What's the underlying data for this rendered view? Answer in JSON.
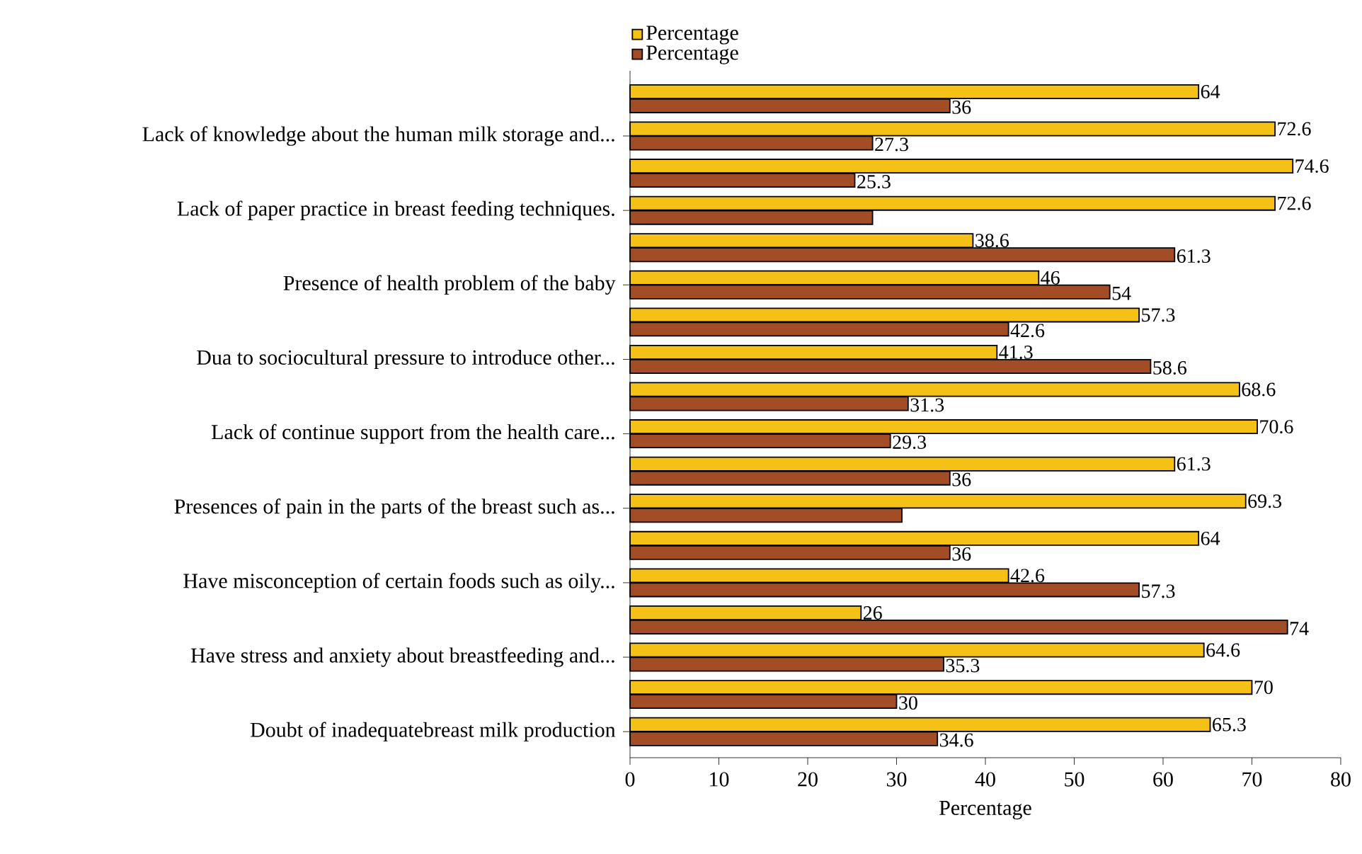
{
  "chart_data": {
    "type": "bar",
    "orientation": "horizontal",
    "xlabel": "Percentage",
    "categories": [
      null,
      "Lack of knowledge about the human milk storage and...",
      null,
      "Lack of paper practice in breast feeding techniques.",
      null,
      "Presence of health problem of the baby",
      null,
      "Dua to sociocultural pressure to introduce other...",
      null,
      "Lack of continue support from the health care...",
      null,
      "Presences of pain in the parts of the breast such as...",
      null,
      "Have misconception of certain foods such as oily...",
      null,
      "Have stress and anxiety about breastfeeding and...",
      null,
      "Doubt of inadequatebreast milk production"
    ],
    "series": [
      {
        "name": "Percentage",
        "color": "#f5c116",
        "values": [
          64,
          72.6,
          74.6,
          72.6,
          38.6,
          46,
          57.3,
          41.3,
          68.6,
          70.6,
          61.3,
          69.3,
          64,
          42.6,
          26,
          64.6,
          70,
          65.3
        ],
        "value_labels": [
          "64",
          "72.6",
          "74.6",
          "72.6",
          "38.6",
          "46",
          "57.3",
          "41.3",
          "68.6",
          "70.6",
          "61.3",
          "69.3",
          "64",
          "42.6",
          "26",
          "64.6",
          "70",
          "65.3"
        ]
      },
      {
        "name": "Percentage",
        "color": "#a34d26",
        "values": [
          36,
          27.3,
          25.3,
          27.3,
          61.3,
          54,
          42.6,
          58.6,
          31.3,
          29.3,
          36,
          30.6,
          36,
          57.3,
          74,
          35.3,
          30,
          34.6
        ],
        "value_labels": [
          "36",
          "27.3",
          "25.3",
          null,
          "61.3",
          "54",
          "42.6",
          "58.6",
          "31.3",
          "29.3",
          "36",
          null,
          "36",
          "57.3",
          "74",
          "35.3",
          "30",
          "34.6"
        ]
      }
    ],
    "xlim": [
      0,
      80
    ],
    "xticks": [
      0,
      10,
      20,
      30,
      40,
      50,
      60,
      70,
      80
    ],
    "legend": "top left"
  }
}
